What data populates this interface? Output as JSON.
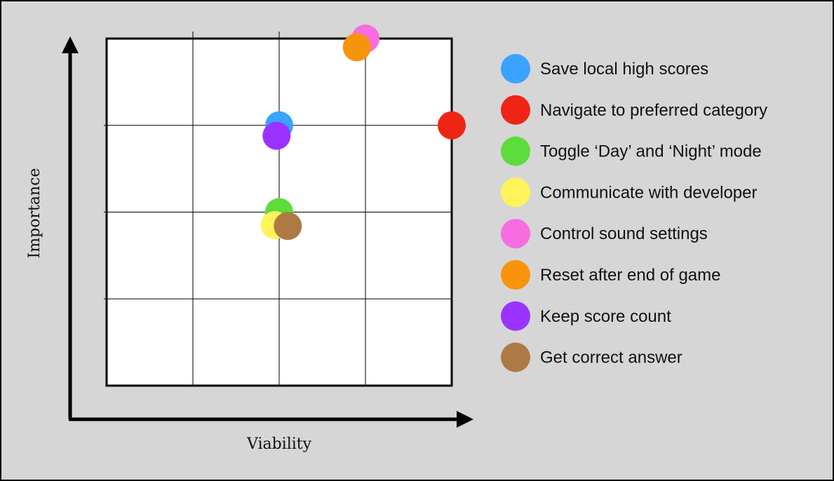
{
  "colors": {
    "background": "#d6d6d6",
    "plot_background": "#ffffff",
    "axis": "#000000"
  },
  "chart_data": {
    "type": "scatter",
    "xlabel": "Viability",
    "ylabel": "Importance",
    "xlim": [
      0,
      4
    ],
    "ylim": [
      0,
      4
    ],
    "grid": true,
    "legend_placement": "right",
    "series": [
      {
        "name": "Save local high scores",
        "color": "#3aa3ff",
        "x": 2.0,
        "y": 3.0
      },
      {
        "name": "Navigate to preferred category",
        "color": "#ee2514",
        "x": 4.0,
        "y": 3.0
      },
      {
        "name": "Toggle ‘Day’ and ‘Night’ mode",
        "color": "#5ddc3c",
        "x": 2.0,
        "y": 2.0
      },
      {
        "name": "Communicate with developer",
        "color": "#fff35a",
        "x": 1.95,
        "y": 1.85
      },
      {
        "name": "Control sound settings",
        "color": "#f76de0",
        "x": 3.0,
        "y": 4.0
      },
      {
        "name": "Reset after end of game",
        "color": "#f8940c",
        "x": 2.9,
        "y": 3.9
      },
      {
        "name": "Keep score count",
        "color": "#9a33ff",
        "x": 1.97,
        "y": 2.88
      },
      {
        "name": "Get correct answer",
        "color": "#ad7a45",
        "x": 2.1,
        "y": 1.84
      }
    ]
  }
}
